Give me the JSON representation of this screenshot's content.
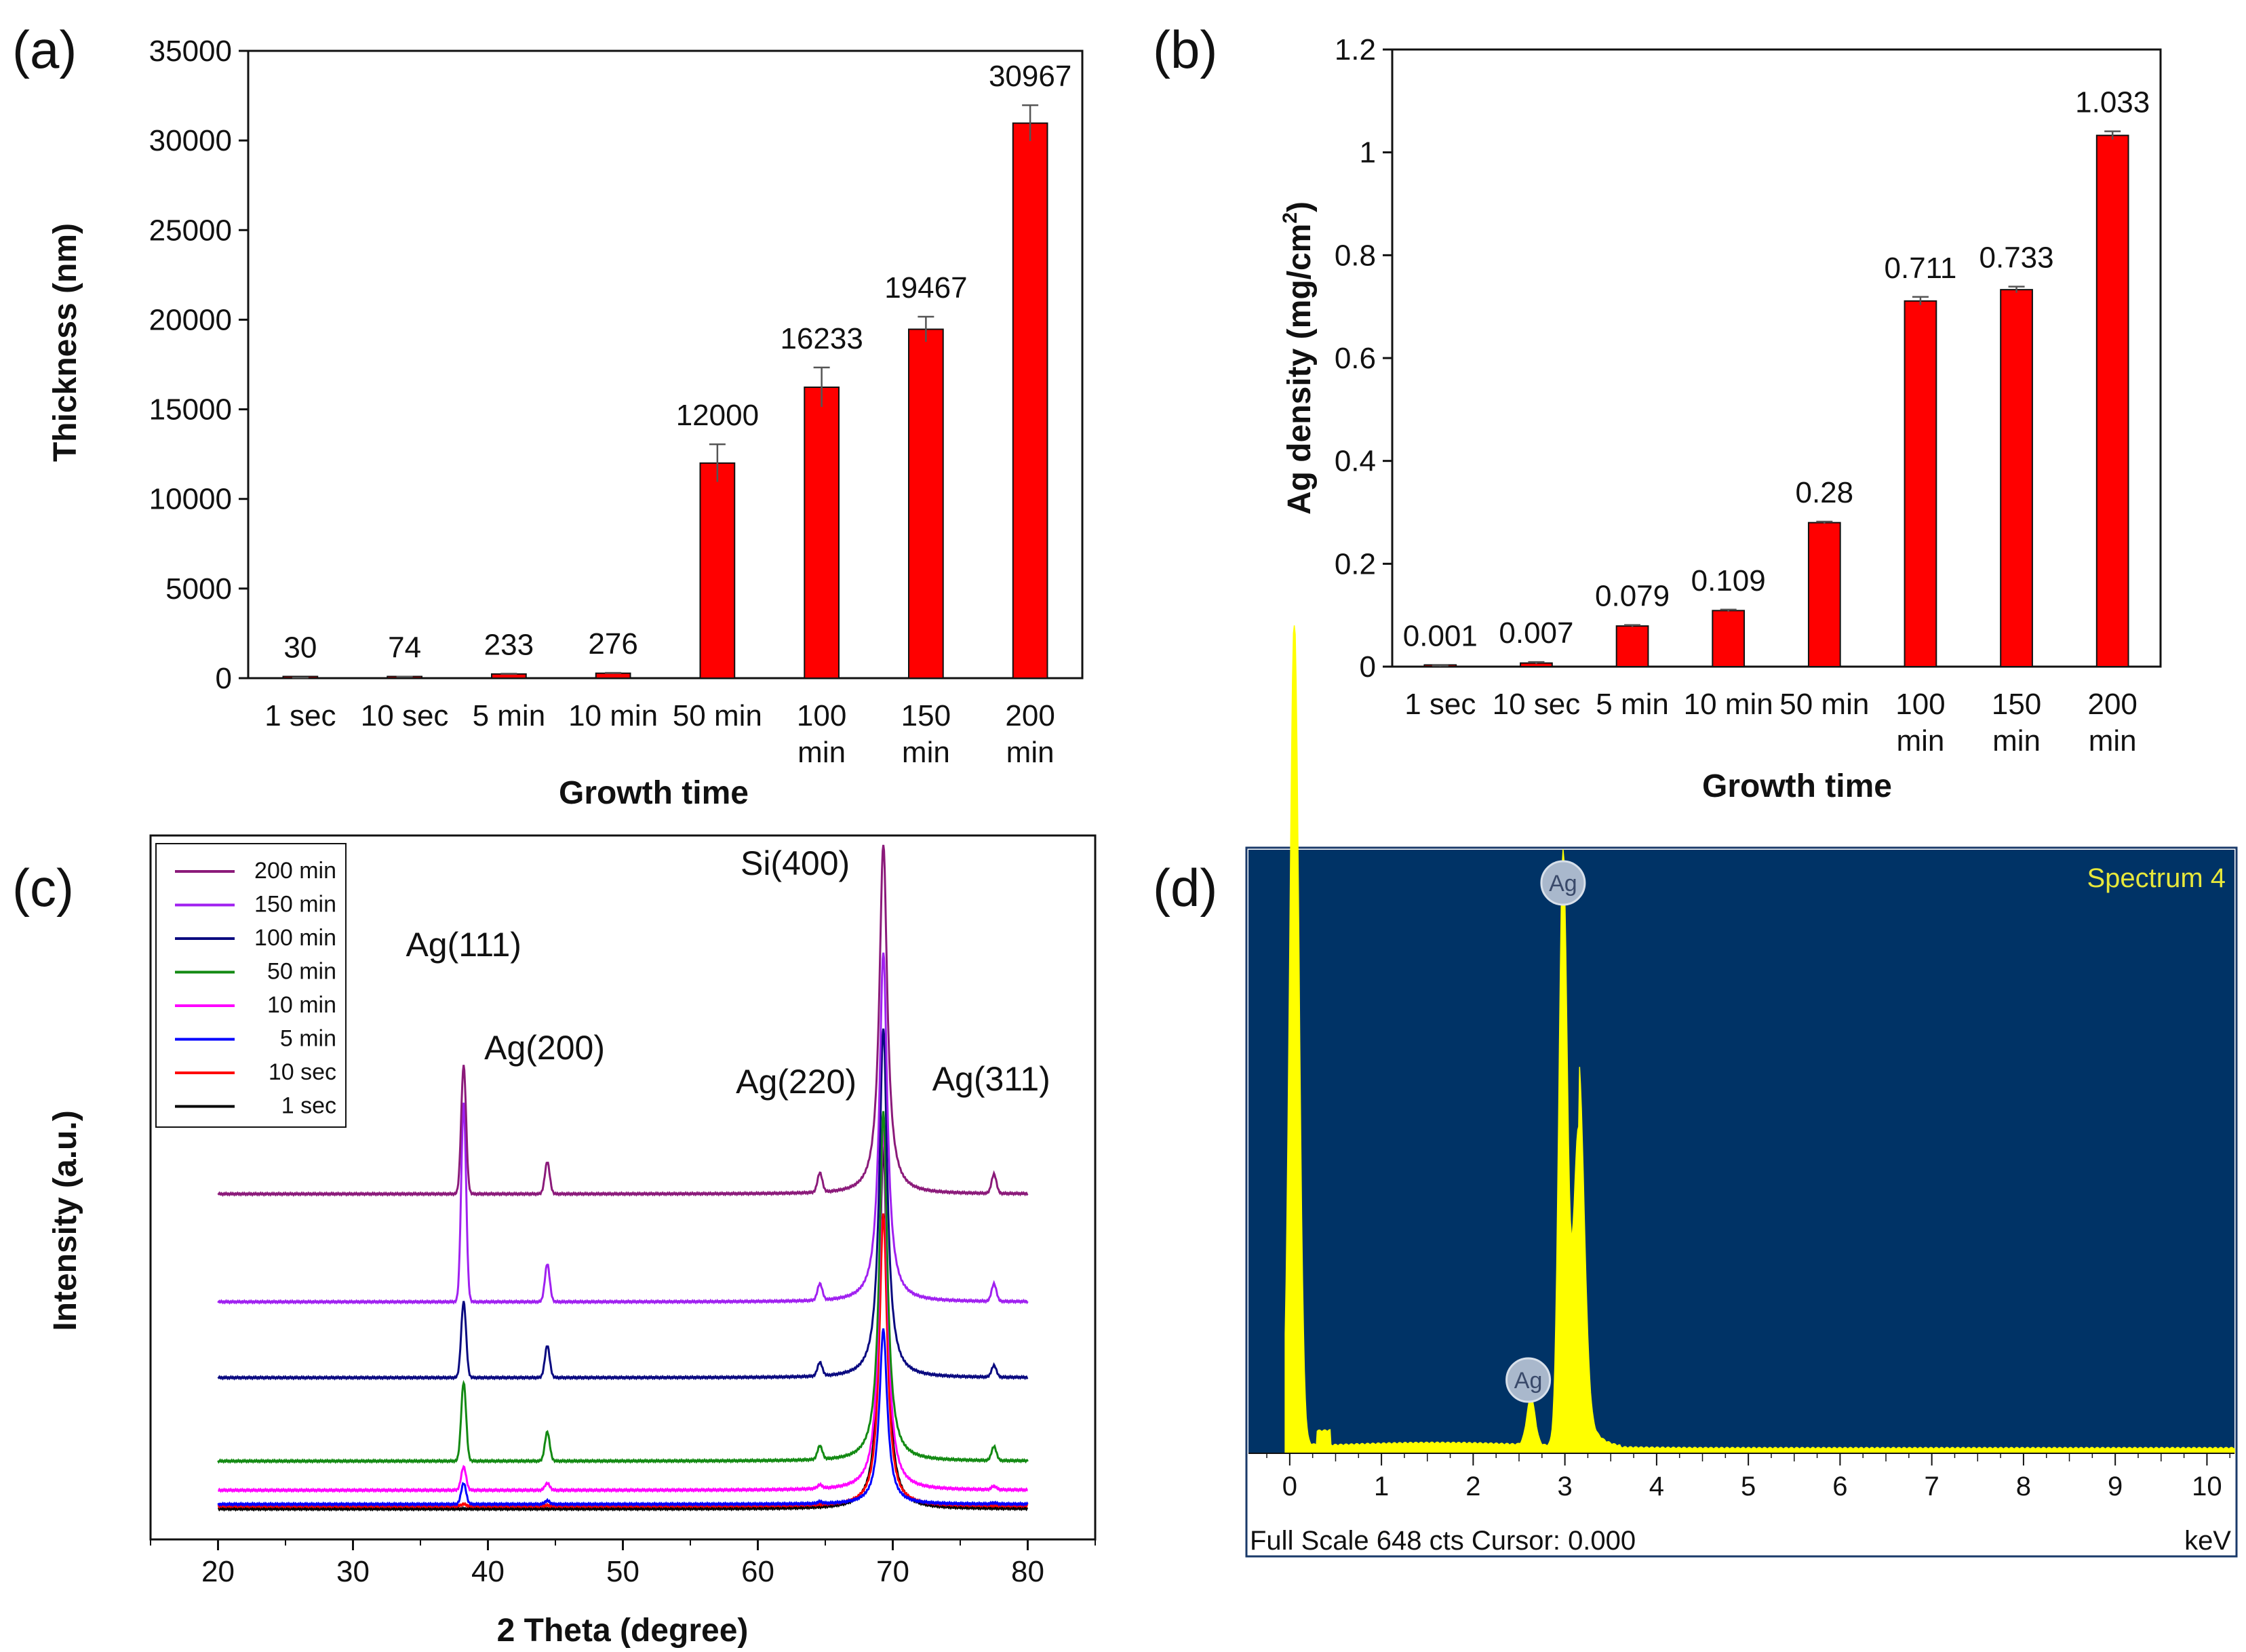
{
  "panel_labels": [
    "(a)",
    "(b)",
    "(c)",
    "(d)"
  ],
  "chart_data": [
    {
      "id": "a",
      "type": "bar",
      "title": "",
      "categories": [
        [
          "1 sec"
        ],
        [
          "10 sec"
        ],
        [
          "5 min"
        ],
        [
          "10 min"
        ],
        [
          "50 min"
        ],
        [
          "100",
          "min"
        ],
        [
          "150",
          "min"
        ],
        [
          "200",
          "min"
        ]
      ],
      "values": [
        30,
        74,
        233,
        276,
        12000,
        16233,
        19467,
        30967
      ],
      "value_labels": [
        "30",
        "74",
        "233",
        "276",
        "12000",
        "16233",
        "19467",
        "30967"
      ],
      "errors": [
        5,
        8,
        20,
        20,
        1050,
        1100,
        700,
        1000
      ],
      "xlabel": "Growth time",
      "ylabel": "Thickness (nm)",
      "ylim": [
        0,
        35000
      ],
      "yticks": [
        0,
        5000,
        10000,
        15000,
        20000,
        25000,
        30000,
        35000
      ],
      "bar_color": "#ff0000"
    },
    {
      "id": "b",
      "type": "bar",
      "title": "",
      "categories": [
        [
          "1 sec"
        ],
        [
          "10 sec"
        ],
        [
          "5 min"
        ],
        [
          "10 min"
        ],
        [
          "50 min"
        ],
        [
          "100",
          "min"
        ],
        [
          "150",
          "min"
        ],
        [
          "200",
          "min"
        ]
      ],
      "values": [
        0.001,
        0.007,
        0.079,
        0.109,
        0.28,
        0.711,
        0.733,
        1.033
      ],
      "value_labels": [
        "0.001",
        "0.007",
        "0.079",
        "0.109",
        "0.28",
        "0.711",
        "0.733",
        "1.033"
      ],
      "errors": [
        0.001,
        0.002,
        0.002,
        0.002,
        0.002,
        0.008,
        0.006,
        0.008
      ],
      "xlabel": "Growth time",
      "ylabel": "Ag density (mg/cm²)",
      "ylabel_main": "Ag density (mg/cm",
      "ylabel_sup": "2",
      "ylabel_end": ")",
      "ylim": [
        0,
        1.2
      ],
      "yticks": [
        "0",
        "0.2",
        "0.4",
        "0.6",
        "0.8",
        "1",
        "1.2"
      ],
      "bar_color": "#ff0000"
    },
    {
      "id": "c",
      "type": "line",
      "title": "",
      "xlabel": "2 Theta (degree)",
      "ylabel": "Intensity (a.u.)",
      "xlim": [
        15,
        85
      ],
      "xticks": [
        20,
        30,
        40,
        50,
        60,
        70,
        80
      ],
      "ylim": [
        0,
        100
      ],
      "peak_positions": [
        38.2,
        44.4,
        64.6,
        77.5
      ],
      "si_peak_position": 69.3,
      "peak_labels": [
        {
          "text": "Ag(111)",
          "x": 38.2
        },
        {
          "text": "Ag(200)",
          "x": 44.4
        },
        {
          "text": "Ag(220)",
          "x": 64.6
        },
        {
          "text": "Ag(311)",
          "x": 77.5
        },
        {
          "text": "Si(400)",
          "x": 69.3
        }
      ],
      "series": [
        {
          "name": "200 min",
          "color": "#8b1a7a",
          "baseline": 54,
          "peaks": [
            22,
            5.5,
            3.3,
            3.3
          ],
          "si_height": 60
        },
        {
          "name": "150 min",
          "color": "#a020f0",
          "baseline": 35.5,
          "peaks": [
            34,
            6.5,
            2.8,
            3.0
          ],
          "si_height": 60
        },
        {
          "name": "100 min",
          "color": "#0a0a80",
          "baseline": 22.5,
          "peaks": [
            13,
            5.5,
            2.3,
            2.0
          ],
          "si_height": 60
        },
        {
          "name": "50 min",
          "color": "#138a13",
          "baseline": 8.2,
          "peaks": [
            13.5,
            5.0,
            2.3,
            2.4
          ],
          "si_height": 60
        },
        {
          "name": "10 min",
          "color": "#ff00ff",
          "baseline": 3.2,
          "peaks": [
            4.0,
            1.2,
            0.6,
            0.6
          ],
          "si_height": 62
        },
        {
          "name": "5 min",
          "color": "#0000ff",
          "baseline": 0.8,
          "peaks": [
            3.6,
            0.6,
            0.3,
            0.2
          ],
          "si_height": 30
        },
        {
          "name": "10 sec",
          "color": "#ff0000",
          "baseline": 0.5,
          "peaks": [
            0.3,
            0.1,
            0.0,
            0.0
          ],
          "si_height": 50
        },
        {
          "name": "1 sec",
          "color": "#000000",
          "baseline": 0.0,
          "peaks": [
            0.0,
            0.0,
            0.0,
            0.0
          ],
          "si_height": 62
        }
      ]
    },
    {
      "id": "d",
      "type": "area",
      "title": "Spectrum 4",
      "xlabel": "keV",
      "xlim": [
        -0.45,
        10.3
      ],
      "xticks": [
        0,
        1,
        2,
        3,
        4,
        5,
        6,
        7,
        8,
        9,
        10
      ],
      "full_scale_cts": 648,
      "footer": "Full Scale 648 cts Cursor: 0.000",
      "background_color": "#003366",
      "spectrum_color": "#ffff00",
      "peaks": [
        {
          "kev": 0.05,
          "height": 140,
          "label": ""
        },
        {
          "kev": 2.98,
          "height": 100,
          "label": "Ag"
        },
        {
          "kev": 3.15,
          "height": 54,
          "label": ""
        },
        {
          "kev": 2.63,
          "height": 8,
          "label": "Ag"
        }
      ],
      "annotations": [
        "Ag",
        "Ag"
      ]
    }
  ]
}
